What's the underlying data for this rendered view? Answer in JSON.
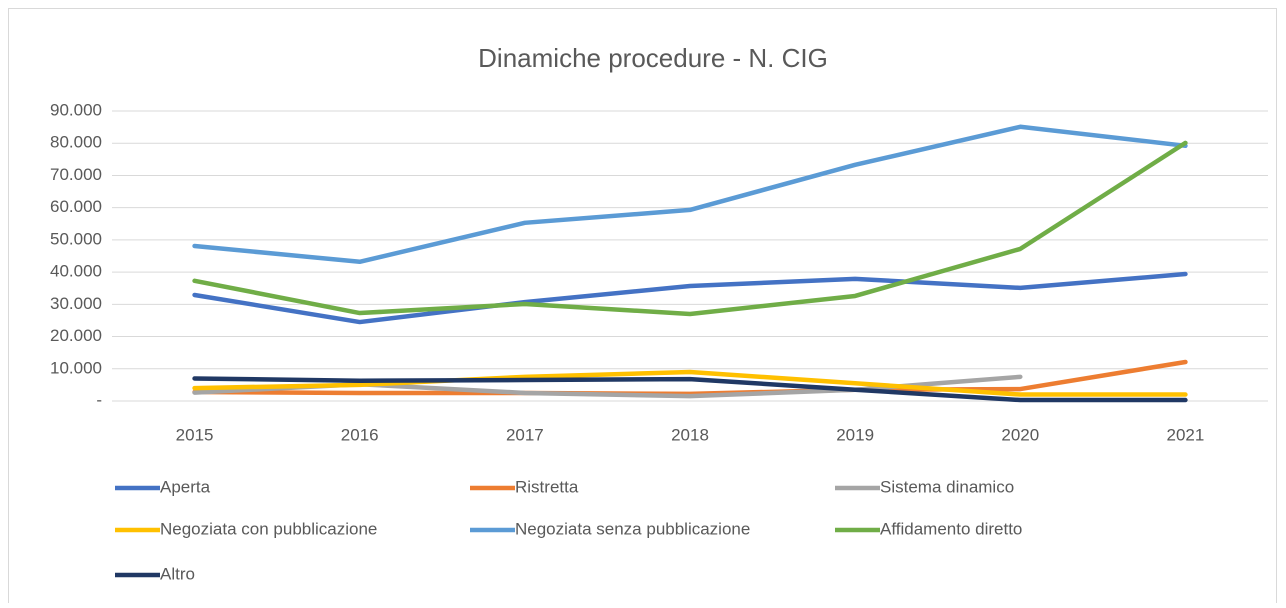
{
  "chart_data": {
    "type": "line",
    "title": "Dinamiche procedure - N. CIG",
    "categories": [
      "2015",
      "2016",
      "2017",
      "2018",
      "2019",
      "2020",
      "2021"
    ],
    "series": [
      {
        "name": "Aperta",
        "color": "#4472c4",
        "values": [
          32900,
          24500,
          30700,
          35700,
          37900,
          35100,
          39400
        ]
      },
      {
        "name": "Ristretta",
        "color": "#ed7d31",
        "values": [
          2800,
          2500,
          2500,
          2200,
          3500,
          3700,
          12100
        ]
      },
      {
        "name": "Sistema dinamico",
        "color": "#a5a5a5",
        "values": [
          2600,
          5200,
          2500,
          1500,
          3500,
          7500,
          null
        ]
      },
      {
        "name": "Negoziata con pubblicazione",
        "color": "#ffc000",
        "values": [
          4000,
          5000,
          7500,
          9000,
          5500,
          2000,
          2000
        ]
      },
      {
        "name": "Negoziata senza pubblicazione",
        "color": "#5b9bd5",
        "values": [
          48100,
          43200,
          55300,
          59300,
          73300,
          85100,
          79200
        ]
      },
      {
        "name": "Affidamento diretto",
        "color": "#70ad47",
        "values": [
          37300,
          27300,
          30100,
          27000,
          32600,
          47200,
          80100
        ]
      },
      {
        "name": "Altro",
        "color": "#203864",
        "values": [
          7000,
          6300,
          6500,
          6800,
          3500,
          300,
          300
        ]
      }
    ],
    "ylim": [
      0,
      90000
    ],
    "yticks": [
      {
        "value": 0,
        "label": "-"
      },
      {
        "value": 10000,
        "label": "10.000"
      },
      {
        "value": 20000,
        "label": "20.000"
      },
      {
        "value": 30000,
        "label": "30.000"
      },
      {
        "value": 40000,
        "label": "40.000"
      },
      {
        "value": 50000,
        "label": "50.000"
      },
      {
        "value": 60000,
        "label": "60.000"
      },
      {
        "value": 70000,
        "label": "70.000"
      },
      {
        "value": 80000,
        "label": "80.000"
      },
      {
        "value": 90000,
        "label": "90.000"
      }
    ],
    "grid": true,
    "legend": "bottom"
  }
}
